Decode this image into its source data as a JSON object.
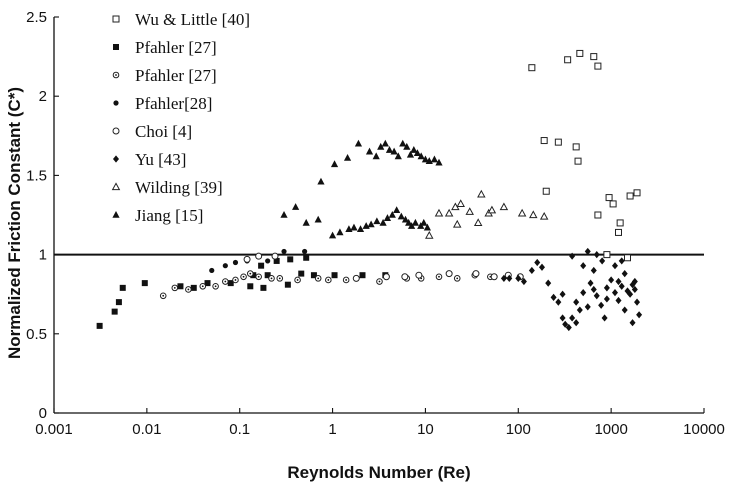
{
  "chart_data": {
    "type": "scatter",
    "x_scale": "log",
    "xlabel": "Reynolds Number (Re)",
    "ylabel": "Normalized Friction Constant (C*)",
    "xlim": [
      0.001,
      10000
    ],
    "ylim": [
      0,
      2.5
    ],
    "x_ticks": [
      "0.001",
      "0.01",
      "0.1",
      "1",
      "10",
      "100",
      "1000",
      "10000"
    ],
    "y_ticks": [
      "0",
      "0.5",
      "1",
      "1.5",
      "2",
      "2.5"
    ],
    "reference_line": {
      "y": 1
    },
    "legend_position": "top-left",
    "grid": false,
    "series": [
      {
        "name": "Wu & Little [40]",
        "marker": "square-open",
        "points": [
          [
            140,
            2.18
          ],
          [
            340,
            2.23
          ],
          [
            460,
            2.27
          ],
          [
            650,
            2.25
          ],
          [
            720,
            2.19
          ],
          [
            190,
            1.72
          ],
          [
            270,
            1.71
          ],
          [
            420,
            1.68
          ],
          [
            440,
            1.59
          ],
          [
            200,
            1.4
          ],
          [
            720,
            1.25
          ],
          [
            950,
            1.36
          ],
          [
            1050,
            1.32
          ],
          [
            1250,
            1.2
          ],
          [
            1200,
            1.14
          ],
          [
            1600,
            1.37
          ],
          [
            1900,
            1.39
          ],
          [
            900,
            1.0
          ],
          [
            1500,
            0.98
          ]
        ]
      },
      {
        "name": "Pfahler [27]",
        "marker": "square-filled",
        "points": [
          [
            0.0031,
            0.55
          ],
          [
            0.0045,
            0.64
          ],
          [
            0.005,
            0.7
          ],
          [
            0.0055,
            0.79
          ],
          [
            0.0095,
            0.82
          ],
          [
            0.023,
            0.8
          ],
          [
            0.032,
            0.79
          ],
          [
            0.045,
            0.82
          ],
          [
            0.08,
            0.82
          ],
          [
            0.13,
            0.8
          ],
          [
            0.18,
            0.79
          ],
          [
            0.33,
            0.81
          ],
          [
            0.14,
            0.87
          ],
          [
            0.2,
            0.87
          ],
          [
            0.17,
            0.93
          ],
          [
            0.25,
            0.96
          ],
          [
            0.35,
            0.97
          ],
          [
            0.52,
            0.98
          ],
          [
            0.46,
            0.88
          ],
          [
            0.63,
            0.87
          ],
          [
            1.05,
            0.87
          ],
          [
            2.1,
            0.87
          ],
          [
            3.7,
            0.87
          ]
        ]
      },
      {
        "name": "Pfahler [27]",
        "marker": "circle-dot",
        "points": [
          [
            0.015,
            0.74
          ],
          [
            0.02,
            0.79
          ],
          [
            0.028,
            0.78
          ],
          [
            0.04,
            0.8
          ],
          [
            0.055,
            0.8
          ],
          [
            0.07,
            0.83
          ],
          [
            0.09,
            0.84
          ],
          [
            0.11,
            0.86
          ],
          [
            0.13,
            0.88
          ],
          [
            0.16,
            0.86
          ],
          [
            0.22,
            0.85
          ],
          [
            0.27,
            0.85
          ],
          [
            0.42,
            0.84
          ],
          [
            0.7,
            0.85
          ],
          [
            0.9,
            0.84
          ],
          [
            1.4,
            0.84
          ],
          [
            3.2,
            0.83
          ],
          [
            6.3,
            0.85
          ],
          [
            9.0,
            0.85
          ],
          [
            14,
            0.86
          ],
          [
            22,
            0.85
          ],
          [
            34,
            0.87
          ],
          [
            50,
            0.86
          ]
        ]
      },
      {
        "name": "Pfahler[28]",
        "marker": "circle-filled-small",
        "points": [
          [
            0.05,
            0.9
          ],
          [
            0.07,
            0.93
          ],
          [
            0.09,
            0.95
          ],
          [
            0.12,
            0.96
          ],
          [
            0.2,
            0.96
          ],
          [
            0.3,
            1.02
          ],
          [
            0.5,
            1.02
          ]
        ]
      },
      {
        "name": "Choi [4]",
        "marker": "circle-open",
        "points": [
          [
            0.12,
            0.97
          ],
          [
            0.16,
            0.99
          ],
          [
            0.24,
            0.99
          ],
          [
            1.8,
            0.85
          ],
          [
            3.8,
            0.86
          ],
          [
            6,
            0.86
          ],
          [
            8.5,
            0.87
          ],
          [
            18,
            0.88
          ],
          [
            35,
            0.88
          ],
          [
            55,
            0.86
          ],
          [
            78,
            0.87
          ],
          [
            105,
            0.86
          ]
        ]
      },
      {
        "name": "Yu [43]",
        "marker": "diamond-filled",
        "points": [
          [
            70,
            0.85
          ],
          [
            80,
            0.85
          ],
          [
            100,
            0.85
          ],
          [
            115,
            0.83
          ],
          [
            140,
            0.9
          ],
          [
            160,
            0.95
          ],
          [
            180,
            0.92
          ],
          [
            210,
            0.82
          ],
          [
            240,
            0.73
          ],
          [
            270,
            0.7
          ],
          [
            300,
            0.6
          ],
          [
            320,
            0.56
          ],
          [
            350,
            0.54
          ],
          [
            380,
            0.6
          ],
          [
            420,
            0.57
          ],
          [
            460,
            0.65
          ],
          [
            500,
            0.76
          ],
          [
            600,
            0.82
          ],
          [
            650,
            0.78
          ],
          [
            700,
            0.74
          ],
          [
            780,
            0.68
          ],
          [
            850,
            0.6
          ],
          [
            900,
            0.72
          ],
          [
            1000,
            0.84
          ],
          [
            1100,
            0.76
          ],
          [
            1200,
            0.71
          ],
          [
            1300,
            0.8
          ],
          [
            1400,
            0.65
          ],
          [
            1500,
            0.77
          ],
          [
            1600,
            0.75
          ],
          [
            1700,
            0.57
          ],
          [
            1800,
            0.83
          ],
          [
            1900,
            0.7
          ],
          [
            2000,
            0.62
          ],
          [
            500,
            0.93
          ],
          [
            650,
            0.9
          ],
          [
            800,
            0.96
          ],
          [
            1100,
            0.93
          ],
          [
            1300,
            0.96
          ],
          [
            380,
            0.99
          ],
          [
            560,
            1.02
          ],
          [
            700,
            1.0
          ],
          [
            1400,
            0.88
          ],
          [
            1800,
            0.78
          ],
          [
            300,
            0.75
          ],
          [
            420,
            0.7
          ],
          [
            560,
            0.67
          ],
          [
            900,
            0.79
          ],
          [
            1200,
            0.83
          ],
          [
            1700,
            0.81
          ]
        ]
      },
      {
        "name": "Wilding [39]",
        "marker": "triangle-open",
        "points": [
          [
            14,
            1.26
          ],
          [
            18,
            1.26
          ],
          [
            21,
            1.3
          ],
          [
            24,
            1.32
          ],
          [
            30,
            1.27
          ],
          [
            40,
            1.38
          ],
          [
            48,
            1.26
          ],
          [
            52,
            1.28
          ],
          [
            70,
            1.3
          ],
          [
            110,
            1.26
          ],
          [
            145,
            1.25
          ],
          [
            190,
            1.24
          ],
          [
            22,
            1.19
          ],
          [
            37,
            1.2
          ],
          [
            11,
            1.12
          ]
        ]
      },
      {
        "name": "Jiang [15]",
        "marker": "triangle-filled",
        "points": [
          [
            0.52,
            1.2
          ],
          [
            0.7,
            1.22
          ],
          [
            1.0,
            1.12
          ],
          [
            1.2,
            1.14
          ],
          [
            1.5,
            1.16
          ],
          [
            1.7,
            1.17
          ],
          [
            2.0,
            1.16
          ],
          [
            2.3,
            1.18
          ],
          [
            2.6,
            1.19
          ],
          [
            3.0,
            1.21
          ],
          [
            3.5,
            1.2
          ],
          [
            3.9,
            1.23
          ],
          [
            4.4,
            1.25
          ],
          [
            4.9,
            1.28
          ],
          [
            5.5,
            1.24
          ],
          [
            6.1,
            1.22
          ],
          [
            6.6,
            1.2
          ],
          [
            7.1,
            1.18
          ],
          [
            7.8,
            1.2
          ],
          [
            8.9,
            1.18
          ],
          [
            9.6,
            1.2
          ],
          [
            10.5,
            1.17
          ],
          [
            0.75,
            1.46
          ],
          [
            1.05,
            1.57
          ],
          [
            1.45,
            1.61
          ],
          [
            1.9,
            1.7
          ],
          [
            2.5,
            1.65
          ],
          [
            2.95,
            1.62
          ],
          [
            3.3,
            1.68
          ],
          [
            3.7,
            1.7
          ],
          [
            4.1,
            1.66
          ],
          [
            4.6,
            1.65
          ],
          [
            5.1,
            1.62
          ],
          [
            5.7,
            1.7
          ],
          [
            6.3,
            1.68
          ],
          [
            6.9,
            1.63
          ],
          [
            7.5,
            1.66
          ],
          [
            8.2,
            1.64
          ],
          [
            9.0,
            1.62
          ],
          [
            10.0,
            1.6
          ],
          [
            11,
            1.59
          ],
          [
            12.5,
            1.6
          ],
          [
            14,
            1.58
          ],
          [
            0.3,
            1.25
          ],
          [
            0.4,
            1.3
          ]
        ]
      }
    ]
  }
}
